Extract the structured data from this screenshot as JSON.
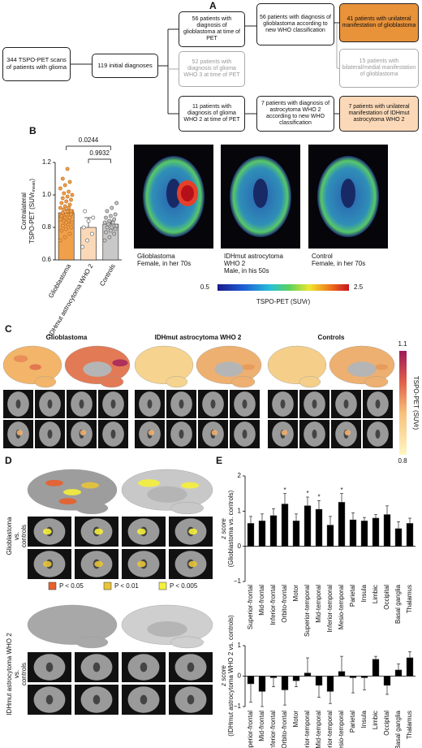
{
  "panel_labels": {
    "a": "A",
    "b": "B",
    "c": "C",
    "d": "D",
    "e": "E"
  },
  "flowchart": {
    "nodes": [
      "344 TSPO-PET scans of patients with glioma",
      "119 initial diagnoses",
      "56 patients with diagnosis of glioblastoma at time of PET",
      "52 patients with diagnosis of glioma WHO 3 at time of PET",
      "11 patients with diagnosis of glioma WHO 2 at time of PET",
      "56 patients with diagnosis of glioblastoma according to new WHO classification",
      "7 patients with diagnosis of astrocytoma WHO 2 according to new WHO classification",
      "41 patients with unilateral manifestation of glioblastoma",
      "15 patients with bilateral/medial manifestation of glioblastoma",
      "7 patients with unilateral manifestation of IDHmut astrocytoma WHO 2"
    ]
  },
  "chart_data": [
    {
      "type": "bar",
      "ylabel": [
        "Contralateral",
        "TSPO-PET (SUVr",
        "mean",
        ")"
      ],
      "categories": [
        "Glioblastoma",
        "IDHmut astrocytoma WHO 2",
        "Controls"
      ],
      "values": [
        0.89,
        0.8,
        0.82
      ],
      "errors": [
        0.02,
        0.06,
        0.02
      ],
      "colors": [
        "#f0a04b",
        "#fbd9b8",
        "#c8c8c8"
      ],
      "points": [
        [
          0.72,
          0.74,
          0.76,
          0.78,
          0.79,
          0.8,
          0.81,
          0.82,
          0.83,
          0.84,
          0.84,
          0.85,
          0.86,
          0.86,
          0.87,
          0.88,
          0.88,
          0.89,
          0.9,
          0.9,
          0.91,
          0.92,
          0.92,
          0.93,
          0.94,
          0.95,
          0.96,
          0.97,
          0.98,
          0.99,
          1.0,
          1.01,
          1.02,
          1.04,
          1.06,
          1.08,
          0.87,
          0.83,
          0.9,
          1.1,
          1.16
        ],
        [
          0.68,
          0.72,
          0.76,
          0.8,
          0.84,
          0.86,
          0.9
        ],
        [
          0.72,
          0.74,
          0.76,
          0.77,
          0.78,
          0.79,
          0.8,
          0.8,
          0.81,
          0.82,
          0.83,
          0.83,
          0.84,
          0.85,
          0.86,
          0.87,
          0.88,
          0.9,
          0.92,
          0.95
        ]
      ],
      "p_values": [
        "0.0244",
        "0.9932"
      ],
      "ylim": [
        0.6,
        1.2
      ],
      "yticks": [
        0.6,
        0.8,
        {
          "value": 1.0,
          "label": "1.0"
        },
        1.2
      ]
    },
    {
      "type": "bar",
      "ylabel": [
        "z score",
        "(Glioblastoma vs. controls)"
      ],
      "categories": [
        "Superior-frontal",
        "Mid-frontal",
        "Inferior-frontal",
        "Orbito-frontal",
        "Motor",
        "Superior-temporal",
        "Mid-temporal",
        "Inferior-temporal",
        "Mesio-temporal",
        "Parietal",
        "Insula",
        "Limbic",
        "Occipital",
        "Basal ganglia",
        "Thalamus"
      ],
      "values": [
        0.65,
        0.72,
        0.87,
        1.2,
        0.72,
        1.15,
        1.05,
        0.6,
        1.25,
        0.75,
        0.72,
        0.8,
        0.9,
        0.5,
        0.65
      ],
      "errors": [
        0.2,
        0.2,
        0.2,
        0.3,
        0.2,
        0.25,
        0.25,
        0.25,
        0.25,
        0.2,
        0.1,
        0.1,
        0.25,
        0.2,
        0.15
      ],
      "significance": [
        null,
        null,
        null,
        "*",
        null,
        "*",
        "*",
        null,
        "*",
        null,
        null,
        null,
        null,
        null,
        null
      ],
      "color": "#000000",
      "ylim": [
        -1,
        2
      ],
      "yticks": [
        {
          "value": -1,
          "label": "−1"
        },
        0,
        1,
        2
      ]
    },
    {
      "type": "bar",
      "ylabel": [
        "z score",
        "(IDHmut astrocytoma WHO 2 vs. controls)"
      ],
      "categories": [
        "Superior-frontal",
        "Mid-frontal",
        "Inferior-frontal",
        "Orbito-frontal",
        "Motor",
        "Superior-temporal",
        "Mid-temporal",
        "Inferior-temporal",
        "Mesio-temporal",
        "Parietal",
        "Insula",
        "Limbic",
        "Occipital",
        "Basal ganglia",
        "Thalamus"
      ],
      "values": [
        -0.25,
        -0.5,
        -0.05,
        -0.45,
        -0.15,
        0.1,
        -0.3,
        -0.5,
        0.15,
        -0.05,
        -0.05,
        0.55,
        -0.3,
        0.2,
        0.6
      ],
      "errors": [
        0.6,
        0.5,
        0.3,
        0.5,
        0.2,
        0.5,
        0.4,
        0.4,
        0.5,
        0.5,
        0.4,
        0.1,
        0.3,
        0.2,
        0.2
      ],
      "color": "#000000",
      "ylim": [
        -1,
        1
      ],
      "yticks": [
        {
          "value": -1,
          "label": "−1"
        },
        0,
        1
      ]
    }
  ],
  "images_b": {
    "captions": [
      [
        "Glioblastoma",
        "Female, in her 70s"
      ],
      [
        "IDHmut astrocytoma",
        "WHO 2",
        "Male, in his 50s"
      ],
      [
        "Control",
        "Female, in her 70s"
      ]
    ],
    "colorbar": {
      "label": "TSPO-PET (SUVr)",
      "ticks": [
        0.5,
        2.5
      ]
    }
  },
  "panel_c": {
    "titles": [
      "Glioblastoma",
      "IDHmut astrocytoma WHO 2",
      "Controls"
    ],
    "colorbar": {
      "label": "TSPO-PET (SUVr)",
      "ticks": [
        1.1,
        0.8
      ]
    }
  },
  "panel_d": {
    "row_labels": [
      [
        "Glioblastoma",
        "vs.",
        "controls"
      ],
      [
        "IDHmut astrocytoma WHO 2",
        "vs.",
        "controls"
      ]
    ],
    "legend": [
      {
        "label": "P < 0.05",
        "color": "#e8602c"
      },
      {
        "label": "P < 0.01",
        "color": "#e8c43a"
      },
      {
        "label": "P < 0.005",
        "color": "#f5f03a"
      }
    ]
  }
}
